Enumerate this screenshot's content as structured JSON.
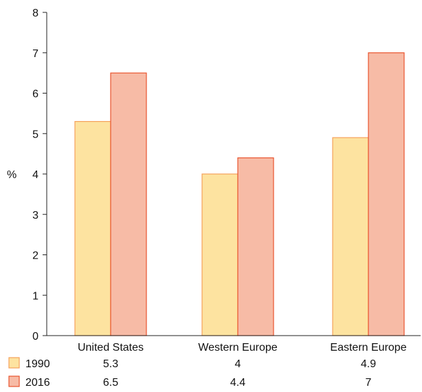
{
  "chart_data": {
    "type": "bar",
    "title": "",
    "xlabel": "",
    "ylabel": "%",
    "ylim": [
      0,
      8
    ],
    "yticks": [
      0,
      1,
      2,
      3,
      4,
      5,
      6,
      7,
      8
    ],
    "grid": false,
    "categories": [
      "United States",
      "Western Europe",
      "Eastern Europe"
    ],
    "series": [
      {
        "name": "1990",
        "values": [
          5.3,
          4,
          4.9
        ],
        "labels": [
          "5.3",
          "4",
          "4.9"
        ],
        "color": "#fde3a0",
        "stroke": "#f5a15a"
      },
      {
        "name": "2016",
        "values": [
          6.5,
          4.4,
          7
        ],
        "labels": [
          "6.5",
          "4.4",
          "7"
        ],
        "color": "#f7bba6",
        "stroke": "#e9542e"
      }
    ],
    "legend": "data-table-bottom"
  }
}
